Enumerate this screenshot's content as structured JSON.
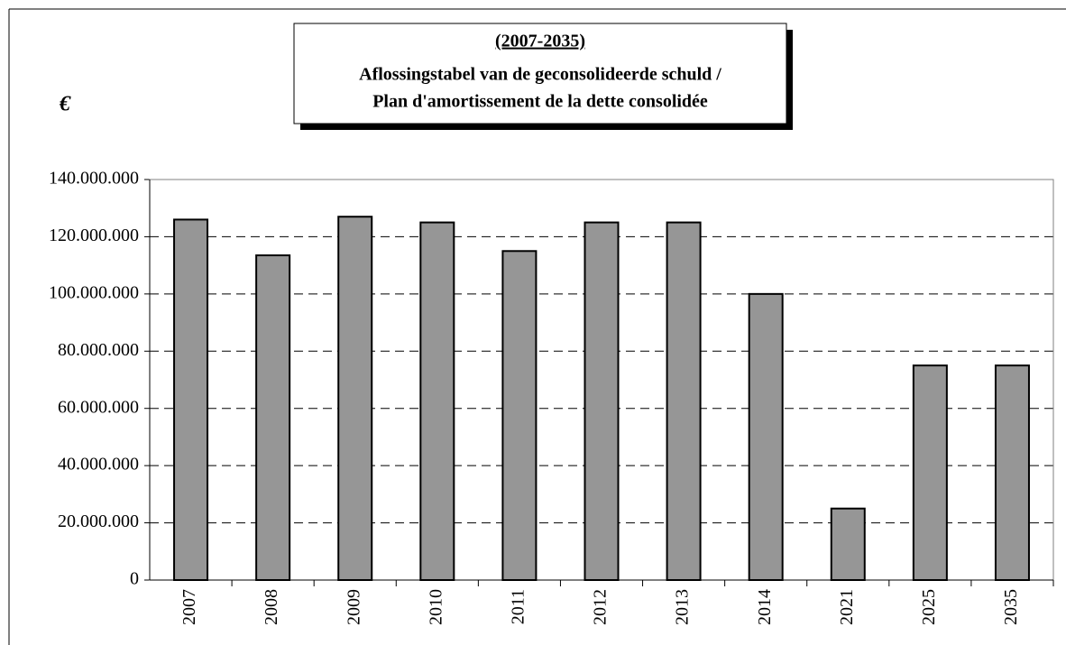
{
  "chart_data": {
    "type": "bar",
    "title": [
      "(2007-2035)",
      "Aflossingstabel  van de geconsolideerde schuld /",
      "Plan d'amortissement de la dette consolidée"
    ],
    "y_label": "€",
    "categories": [
      "2007",
      "2008",
      "2009",
      "2010",
      "2011",
      "2012",
      "2013",
      "2014",
      "2021",
      "2025",
      "2035"
    ],
    "values": [
      126000000,
      113500000,
      127000000,
      125000000,
      115000000,
      125000000,
      125000000,
      100000000,
      25000000,
      75000000,
      75000000
    ],
    "color": "#969696",
    "ylim": [
      0,
      140000000
    ],
    "yticks": [
      0,
      {
        "value": 20000000,
        "label": "20.000.000"
      },
      {
        "value": 40000000,
        "label": "40.000.000"
      },
      {
        "value": 60000000,
        "label": "60.000.000"
      },
      {
        "value": 80000000,
        "label": "80.000.000"
      },
      {
        "value": 100000000,
        "label": "100.000.000"
      },
      {
        "value": 120000000,
        "label": "120.000.000"
      },
      {
        "value": 140000000,
        "label": "140.000.000"
      }
    ],
    "grid": true
  }
}
